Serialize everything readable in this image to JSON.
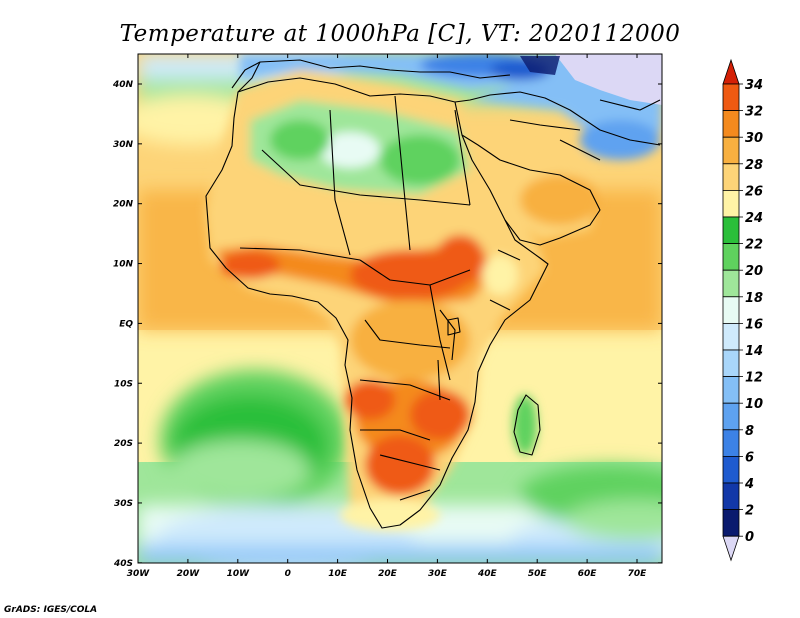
{
  "title": "Temperature at 1000hPa [C], VT: 2020112000",
  "credit": "GrADS: IGES/COLA",
  "x_ticks": [
    "30W",
    "20W",
    "10W",
    "0",
    "10E",
    "20E",
    "30E",
    "40E",
    "50E",
    "60E",
    "70E"
  ],
  "y_ticks": [
    "40N",
    "30N",
    "20N",
    "10N",
    "EQ",
    "10S",
    "20S",
    "30S",
    "40S"
  ],
  "colorbar": {
    "labels": [
      "34",
      "32",
      "30",
      "28",
      "26",
      "24",
      "22",
      "20",
      "18",
      "16",
      "14",
      "12",
      "10",
      "8",
      "6",
      "4",
      "2",
      "0"
    ],
    "colors": {
      "below_0": "#dcd8f5",
      "0_2": "#0a1a6e",
      "2_4": "#1238a8",
      "4_6": "#1f5bcf",
      "6_8": "#3c82e6",
      "8_10": "#5ea2f0",
      "10_12": "#84bff6",
      "12_14": "#a9d6fa",
      "14_16": "#cfeafc",
      "16_18": "#e8fbf4",
      "18_20": "#9fe69a",
      "20_22": "#5fd25e",
      "22_24": "#2bbf3a",
      "24_26": "#fff3a6",
      "26_28": "#fdd478",
      "28_30": "#f8b040",
      "30_32": "#f48a1e",
      "32_34": "#ef5a12",
      "above_34": "#d42006"
    }
  }
}
